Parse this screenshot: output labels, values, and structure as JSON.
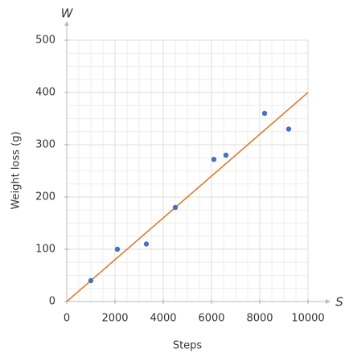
{
  "chart_data": {
    "type": "scatter",
    "x_label": "Steps",
    "y_label": "Weight loss (g)",
    "x_axis_symbol": "S",
    "y_axis_symbol": "W",
    "x": [
      1000,
      2100,
      3300,
      4500,
      6100,
      6600,
      8200,
      9200
    ],
    "y": [
      40,
      100,
      110,
      180,
      272,
      280,
      360,
      330
    ],
    "color": "#4472c4",
    "fit": {
      "x": [
        0,
        10000
      ],
      "y": [
        0,
        400
      ],
      "color": "#e07b2a"
    },
    "xlim": [
      0,
      10000
    ],
    "xticks": [
      0,
      2000,
      4000,
      6000,
      8000,
      10000
    ],
    "ylim": [
      0,
      500
    ],
    "yticks": [
      0,
      100,
      200,
      300,
      400,
      500
    ],
    "grid": true
  }
}
